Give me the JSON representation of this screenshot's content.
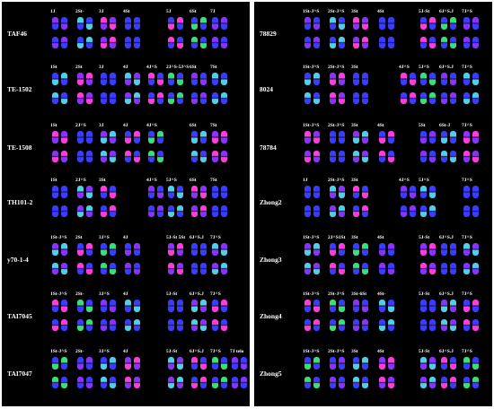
{
  "colors": {
    "panel_bg": "#000000",
    "separator": "#ffffff",
    "label": "#ffffff",
    "chrom_blue": "#3a3cff",
    "chrom_violet": "#8a33ff",
    "chrom_magenta": "#ff3ddc",
    "chrom_cyan": "#4fd0e8",
    "chrom_green": "#39e07a"
  },
  "left": [
    {
      "accession": "TAF46",
      "chroms": [
        "1J",
        "2St-",
        "3J",
        "4St",
        "",
        "5J",
        "6St",
        "7J"
      ]
    },
    {
      "accession": "TE-1502",
      "chroms": [
        "1St",
        "2St",
        "3J",
        "4J",
        "4J^S",
        "2J^S-5J^S",
        "6St",
        "7St"
      ]
    },
    {
      "accession": "TE-1508",
      "chroms": [
        "1St",
        "2J^S",
        "3J",
        "4J",
        "4J^S",
        "",
        "6St",
        "7St"
      ]
    },
    {
      "accession": "TH101-2",
      "chroms": [
        "1St",
        "2J^S",
        "3St",
        "",
        "4J^S",
        "5J^S",
        "6St",
        "7St"
      ]
    },
    {
      "accession": "y70-1-4",
      "chroms": [
        "1St-J^S",
        "2St",
        "3J^S",
        "4J",
        "",
        "5J-St 5St",
        "6J^S.J",
        "7J^S"
      ]
    },
    {
      "accession": "TAI7045",
      "chroms": [
        "1St-J^S",
        "2St-",
        "3J^S",
        "4J",
        "",
        "5J-St",
        "6J^S.J",
        "7J^S"
      ]
    },
    {
      "accession": "TAI7047",
      "chroms": [
        "1St-J^S",
        "2St-",
        "3J^S",
        "4J",
        "",
        "5J-St",
        "6J^S.J",
        "7J^S",
        "7J telo"
      ]
    }
  ],
  "right": [
    {
      "accession": "78829",
      "chroms": [
        "1St-J^S",
        "2St-J^S",
        "3St",
        "4St",
        "",
        "5J-St",
        "6J^S.J",
        "7J^S"
      ]
    },
    {
      "accession": "8024",
      "chroms": [
        "1St-J^S",
        "2St-J^S",
        "3St",
        "",
        "4J^S",
        "5J^S",
        "6J^S.J",
        "7J^S"
      ]
    },
    {
      "accession": "78784",
      "chroms": [
        "1St-J^S",
        "2St-J^S",
        "3St",
        "4St",
        "",
        "5St",
        "6St-J",
        "7J^S"
      ]
    },
    {
      "accession": "Zhong2",
      "chroms": [
        "1J",
        "2St-J^S",
        "3St",
        "",
        "4J^S",
        "5J^S",
        "",
        "7J^S"
      ]
    },
    {
      "accession": "Zhong3",
      "chroms": [
        "1St-J^S",
        "2J^S1St",
        "3St",
        "4St",
        "",
        "5J-St",
        "6J^S.J",
        "7J^S"
      ]
    },
    {
      "accession": "Zhong4",
      "chroms": [
        "1St-J^S",
        "2St-J^S",
        "3St-6St",
        "4St-",
        "",
        "5J-St",
        "6J^S.J",
        "7J^S"
      ]
    },
    {
      "accession": "Zhong5",
      "chroms": [
        "1St-J^S",
        "2St-J^S",
        "3St",
        "4St",
        "",
        "5J-St",
        "6J^S.J",
        "7J^S"
      ]
    }
  ]
}
